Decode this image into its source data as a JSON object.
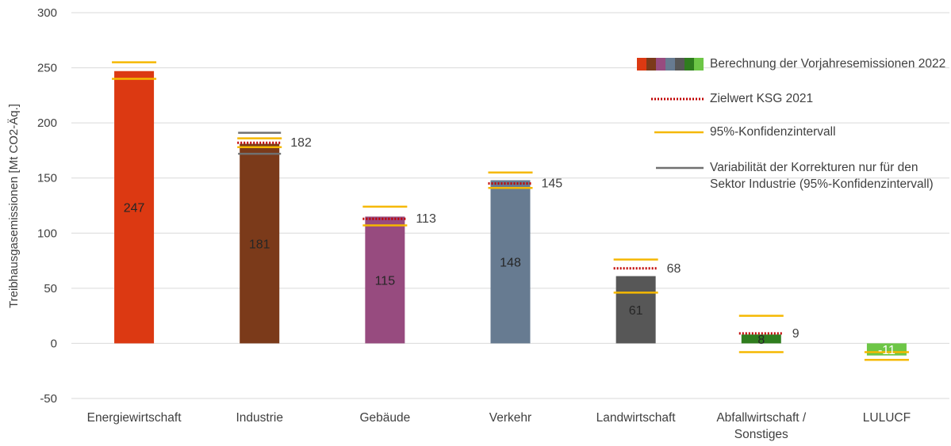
{
  "chart_data": {
    "type": "bar",
    "ylabel": "Treibhausgasemissionen [Mt CO2-Äq.]",
    "ylim": [
      -50,
      300
    ],
    "yticks": [
      -50,
      0,
      50,
      100,
      150,
      200,
      250,
      300
    ],
    "grid": true,
    "legend_position": "top-right",
    "categories": [
      {
        "label": [
          "Energiewirtschaft"
        ],
        "value": 247,
        "color": "#dc3912",
        "ci_low": 240,
        "ci_high": 255,
        "target": null,
        "target_label": null,
        "value_label_dark": true
      },
      {
        "label": [
          "Industrie"
        ],
        "value": 181,
        "color": "#7b3a1a",
        "ci_low": 178,
        "ci_high": 186,
        "var_low": 172,
        "var_high": 191,
        "target": 182,
        "target_label": "182",
        "value_label_dark": true
      },
      {
        "label": [
          "Gebäude"
        ],
        "value": 115,
        "color": "#974b7f",
        "ci_low": 107,
        "ci_high": 124,
        "target": 113,
        "target_label": "113",
        "value_label_dark": true
      },
      {
        "label": [
          "Verkehr"
        ],
        "value": 148,
        "color": "#677b91",
        "ci_low": 141,
        "ci_high": 155,
        "target": 145,
        "target_label": "145",
        "value_label_dark": true
      },
      {
        "label": [
          "Landwirtschaft"
        ],
        "value": 61,
        "color": "#575757",
        "ci_low": 46,
        "ci_high": 76,
        "target": 68,
        "target_label": "68",
        "value_label_dark": true
      },
      {
        "label": [
          "Abfallwirtschaft /",
          "Sonstiges"
        ],
        "value": 8,
        "color": "#2f7d1e",
        "ci_low": -8,
        "ci_high": 25,
        "target": 9,
        "target_label": "9",
        "value_label_dark": true
      },
      {
        "label": [
          "LULUCF"
        ],
        "value": -11,
        "color": "#6dc646",
        "ci_low": -15,
        "ci_high": -8,
        "target": null,
        "target_label": null,
        "value_label_dark": false
      }
    ],
    "value_labels": [
      "247",
      "181",
      "115",
      "148",
      "61",
      "8",
      "-11"
    ]
  },
  "colors": {
    "confidence": "#f5b800",
    "target": "#c00000",
    "variability": "#707070",
    "grid": "#d9d9d9",
    "text": "#404040"
  },
  "legend": {
    "items": [
      {
        "label": "Berechnung der Vorjahresemissionen 2022",
        "kind": "swatch",
        "colors": [
          "#dc3912",
          "#7b3a1a",
          "#974b7f",
          "#677b91",
          "#575757",
          "#2f7d1e",
          "#6dc646"
        ]
      },
      {
        "label": "Zielwert KSG 2021",
        "kind": "dotted",
        "color": "#c00000"
      },
      {
        "label": "95%-Konfidenzintervall",
        "kind": "line",
        "color": "#f5b800"
      },
      {
        "label": "Variabilität der Korrekturen nur für den Sektor Industrie (95%-Konfidenzintervall)",
        "kind": "line",
        "color": "#707070"
      }
    ]
  }
}
